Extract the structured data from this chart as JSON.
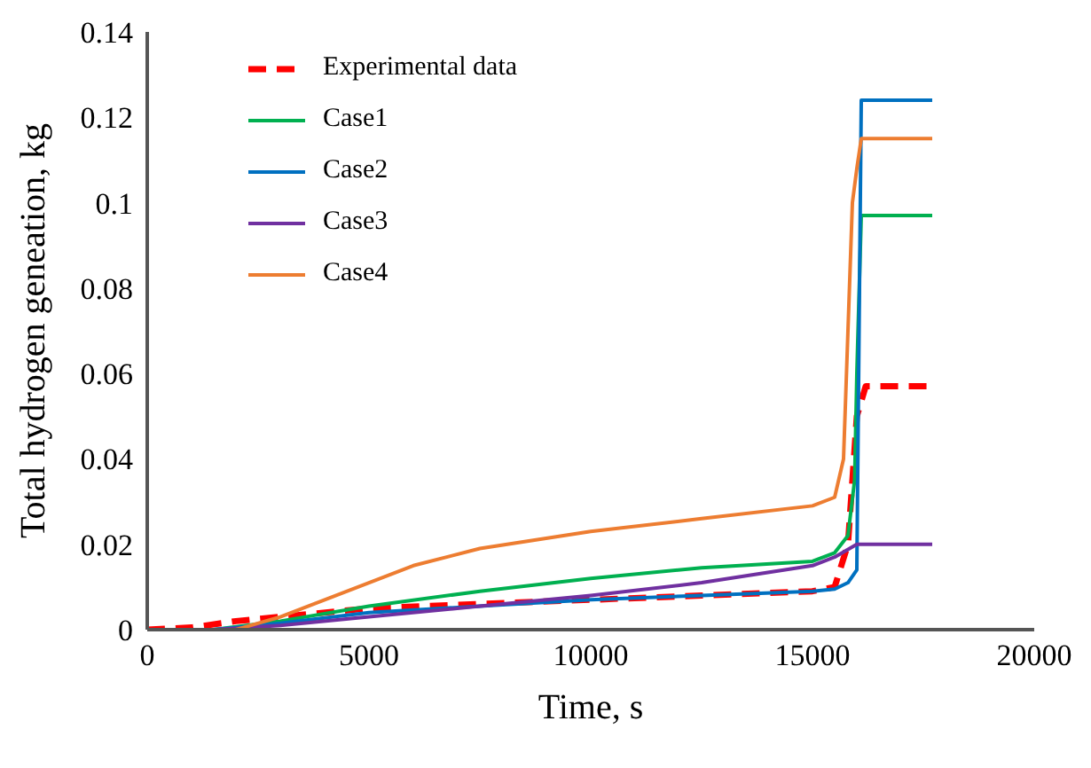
{
  "chart_data": {
    "type": "line",
    "xlabel": "Time, s",
    "ylabel": "Total hydrogen  geneation,  kg",
    "xlim": [
      0,
      20000
    ],
    "xticks": [
      0,
      5000,
      10000,
      15000,
      20000
    ],
    "ylim": [
      0,
      0.14
    ],
    "yticks": [
      0,
      0.02,
      0.04,
      0.06,
      0.08,
      0.1,
      0.12,
      0.14
    ],
    "grid": false,
    "legend": "top left",
    "marker": "none",
    "series": [
      {
        "name": "Experimental data",
        "color": "#ff0000",
        "line_style": "dashed",
        "x": [
          0,
          1000,
          2000,
          3000,
          5000,
          7500,
          10000,
          12500,
          15000,
          15500,
          15800,
          15900,
          16000,
          16200,
          17700
        ],
        "values": [
          0,
          0.0005,
          0.002,
          0.003,
          0.005,
          0.006,
          0.007,
          0.008,
          0.009,
          0.01,
          0.02,
          0.035,
          0.05,
          0.057,
          0.057
        ]
      },
      {
        "name": "Case1",
        "color": "#00b050",
        "line_style": "solid",
        "x": [
          1500,
          3000,
          5000,
          7500,
          10000,
          12500,
          15000,
          15500,
          15800,
          15950,
          16000,
          16100,
          17700
        ],
        "values": [
          0,
          0.002,
          0.0055,
          0.009,
          0.012,
          0.0145,
          0.016,
          0.018,
          0.022,
          0.035,
          0.06,
          0.097,
          0.097
        ]
      },
      {
        "name": "Case2",
        "color": "#0070c0",
        "line_style": "solid",
        "x": [
          1500,
          3000,
          5000,
          7500,
          10000,
          12500,
          15000,
          15500,
          15800,
          16000,
          16100,
          17700
        ],
        "values": [
          0,
          0.0015,
          0.004,
          0.0055,
          0.007,
          0.008,
          0.009,
          0.0095,
          0.011,
          0.014,
          0.124,
          0.124
        ]
      },
      {
        "name": "Case3",
        "color": "#7030a0",
        "line_style": "solid",
        "x": [
          1500,
          3000,
          5000,
          7500,
          10000,
          12500,
          15000,
          15500,
          16000,
          17700
        ],
        "values": [
          0,
          0.001,
          0.003,
          0.0055,
          0.008,
          0.011,
          0.015,
          0.017,
          0.02,
          0.02
        ]
      },
      {
        "name": "Case4",
        "color": "#ed7d31",
        "line_style": "solid",
        "x": [
          2000,
          3000,
          4000,
          5000,
          6000,
          7500,
          10000,
          12500,
          15000,
          15500,
          15700,
          15800,
          15900,
          16000,
          16100,
          17700
        ],
        "values": [
          0,
          0.003,
          0.007,
          0.011,
          0.015,
          0.019,
          0.023,
          0.026,
          0.029,
          0.031,
          0.04,
          0.07,
          0.1,
          0.108,
          0.115,
          0.115
        ]
      }
    ]
  }
}
